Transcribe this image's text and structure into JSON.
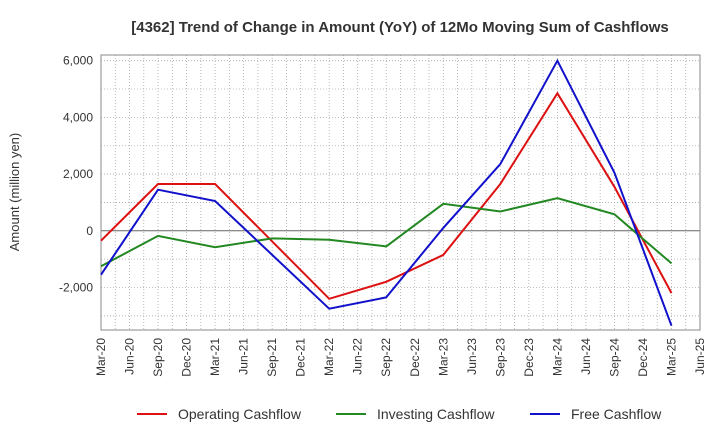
{
  "chart_data": {
    "type": "line",
    "title": "[4362]  Trend of Change in Amount (YoY) of 12Mo Moving Sum of Cashflows",
    "xlabel": "",
    "ylabel": "Amount (million yen)",
    "ylim": [
      -3500,
      6200
    ],
    "yticks": [
      -2000,
      0,
      2000,
      4000,
      6000
    ],
    "ytick_labels": [
      "-2,000",
      "0",
      "2,000",
      "4,000",
      "6,000"
    ],
    "grid": true,
    "legend_position": "bottom",
    "x": [
      "Mar-20",
      "Jun-20",
      "Sep-20",
      "Dec-20",
      "Mar-21",
      "Jun-21",
      "Sep-21",
      "Dec-21",
      "Mar-22",
      "Jun-22",
      "Sep-22",
      "Dec-22",
      "Mar-23",
      "Jun-23",
      "Sep-23",
      "Dec-23",
      "Mar-24",
      "Jun-24",
      "Sep-24",
      "Dec-24",
      "Mar-25",
      "Jun-25"
    ],
    "series": [
      {
        "name": "Operating Cashflow",
        "color": "#dd1111",
        "points": [
          [
            0,
            -350
          ],
          [
            2,
            1650
          ],
          [
            4,
            1650
          ],
          [
            8,
            -2400
          ],
          [
            10,
            -1800
          ],
          [
            12,
            -850
          ],
          [
            14,
            1650
          ],
          [
            16,
            4850
          ],
          [
            18,
            1550
          ],
          [
            20,
            -2200
          ]
        ]
      },
      {
        "name": "Investing Cashflow",
        "color": "#228822",
        "points": [
          [
            0,
            -1250
          ],
          [
            2,
            -180
          ],
          [
            4,
            -580
          ],
          [
            6,
            -270
          ],
          [
            8,
            -320
          ],
          [
            10,
            -550
          ],
          [
            12,
            950
          ],
          [
            14,
            680
          ],
          [
            16,
            1150
          ],
          [
            18,
            580
          ],
          [
            20,
            -1150
          ]
        ]
      },
      {
        "name": "Free Cashflow",
        "color": "#1111cc",
        "points": [
          [
            0,
            -1550
          ],
          [
            2,
            1450
          ],
          [
            4,
            1050
          ],
          [
            8,
            -2750
          ],
          [
            10,
            -2350
          ],
          [
            12,
            100
          ],
          [
            14,
            2350
          ],
          [
            16,
            6000
          ],
          [
            18,
            2050
          ],
          [
            20,
            -3350
          ]
        ]
      }
    ]
  }
}
